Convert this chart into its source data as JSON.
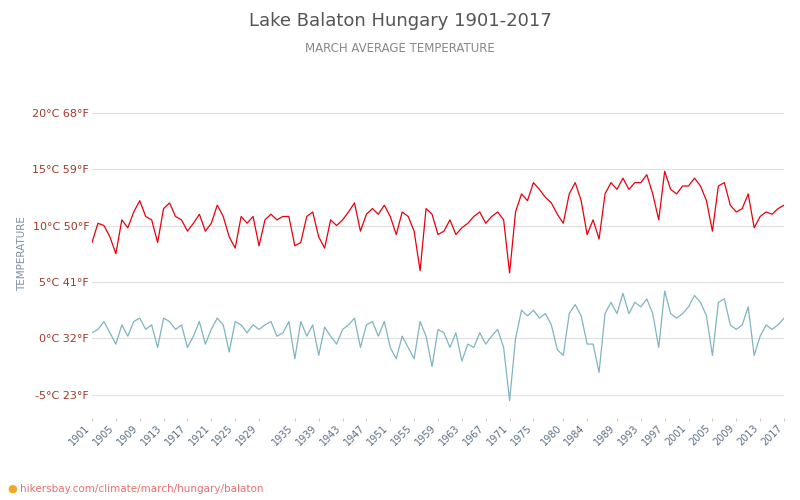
{
  "title": "Lake Balaton Hungary 1901-2017",
  "subtitle": "MARCH AVERAGE TEMPERATURE",
  "ylabel": "TEMPERATURE",
  "xlabel_url": "hikersbay.com/climate/march/hungary/balaton",
  "ylim": [
    -7,
    22
  ],
  "yticks_c": [
    -5,
    0,
    5,
    10,
    15,
    20
  ],
  "yticks_f": [
    23,
    32,
    41,
    50,
    59,
    68
  ],
  "years": [
    1901,
    1902,
    1903,
    1904,
    1905,
    1906,
    1907,
    1908,
    1909,
    1910,
    1911,
    1912,
    1913,
    1914,
    1915,
    1916,
    1917,
    1918,
    1919,
    1920,
    1921,
    1922,
    1923,
    1924,
    1925,
    1926,
    1927,
    1928,
    1929,
    1930,
    1931,
    1932,
    1933,
    1934,
    1935,
    1936,
    1937,
    1938,
    1939,
    1940,
    1941,
    1942,
    1943,
    1944,
    1945,
    1946,
    1947,
    1948,
    1949,
    1950,
    1951,
    1952,
    1953,
    1954,
    1955,
    1956,
    1957,
    1958,
    1959,
    1960,
    1961,
    1962,
    1963,
    1964,
    1965,
    1966,
    1967,
    1968,
    1969,
    1970,
    1971,
    1972,
    1973,
    1974,
    1975,
    1976,
    1977,
    1978,
    1979,
    1980,
    1981,
    1982,
    1983,
    1984,
    1985,
    1986,
    1987,
    1988,
    1989,
    1990,
    1991,
    1992,
    1993,
    1994,
    1995,
    1996,
    1997,
    1998,
    1999,
    2000,
    2001,
    2002,
    2003,
    2004,
    2005,
    2006,
    2007,
    2008,
    2009,
    2010,
    2011,
    2012,
    2013,
    2014,
    2015,
    2016,
    2017
  ],
  "day_temps": [
    8.5,
    10.2,
    10.0,
    9.0,
    7.5,
    10.5,
    9.8,
    11.2,
    12.2,
    10.8,
    10.5,
    8.5,
    11.5,
    12.0,
    10.8,
    10.5,
    9.5,
    10.2,
    11.0,
    9.5,
    10.2,
    11.8,
    10.8,
    9.0,
    8.0,
    10.8,
    10.2,
    10.8,
    8.2,
    10.5,
    11.0,
    10.5,
    10.8,
    10.8,
    8.2,
    8.5,
    10.8,
    11.2,
    9.0,
    8.0,
    10.5,
    10.0,
    10.5,
    11.2,
    12.0,
    9.5,
    11.0,
    11.5,
    11.0,
    11.8,
    10.8,
    9.2,
    11.2,
    10.8,
    9.5,
    6.0,
    11.5,
    11.0,
    9.2,
    9.5,
    10.5,
    9.2,
    9.8,
    10.2,
    10.8,
    11.2,
    10.2,
    10.8,
    11.2,
    10.5,
    5.8,
    11.2,
    12.8,
    12.2,
    13.8,
    13.2,
    12.5,
    12.0,
    11.0,
    10.2,
    12.8,
    13.8,
    12.2,
    9.2,
    10.5,
    8.8,
    12.8,
    13.8,
    13.2,
    14.2,
    13.2,
    13.8,
    13.8,
    14.5,
    12.8,
    10.5,
    14.8,
    13.2,
    12.8,
    13.5,
    13.5,
    14.2,
    13.5,
    12.2,
    9.5,
    13.5,
    13.8,
    11.8,
    11.2,
    11.5,
    12.8,
    9.8,
    10.8,
    11.2,
    11.0,
    11.5,
    11.8
  ],
  "night_temps": [
    0.5,
    0.8,
    1.5,
    0.5,
    -0.5,
    1.2,
    0.2,
    1.5,
    1.8,
    0.8,
    1.2,
    -0.8,
    1.8,
    1.5,
    0.8,
    1.2,
    -0.8,
    0.2,
    1.5,
    -0.5,
    0.8,
    1.8,
    1.2,
    -1.2,
    1.5,
    1.2,
    0.5,
    1.2,
    0.8,
    1.2,
    1.5,
    0.2,
    0.5,
    1.5,
    -1.8,
    1.5,
    0.2,
    1.2,
    -1.5,
    1.0,
    0.2,
    -0.5,
    0.8,
    1.2,
    1.8,
    -0.8,
    1.2,
    1.5,
    0.2,
    1.5,
    -0.8,
    -1.8,
    0.2,
    -0.8,
    -1.8,
    1.5,
    0.2,
    -2.5,
    0.8,
    0.5,
    -0.8,
    0.5,
    -2.0,
    -0.5,
    -0.8,
    0.5,
    -0.5,
    0.2,
    0.8,
    -0.8,
    -5.5,
    0.0,
    2.5,
    2.0,
    2.5,
    1.8,
    2.2,
    1.2,
    -1.0,
    -1.5,
    2.2,
    3.0,
    2.0,
    -0.5,
    -0.5,
    -3.0,
    2.2,
    3.2,
    2.2,
    4.0,
    2.2,
    3.2,
    2.8,
    3.5,
    2.2,
    -0.8,
    4.2,
    2.2,
    1.8,
    2.2,
    2.8,
    3.8,
    3.2,
    2.0,
    -1.5,
    3.2,
    3.5,
    1.2,
    0.8,
    1.2,
    2.8,
    -1.5,
    0.2,
    1.2,
    0.8,
    1.2,
    1.8
  ],
  "day_color": "#e8000d",
  "night_color": "#7eb5c0",
  "title_color": "#555555",
  "subtitle_color": "#888888",
  "ylabel_color": "#7a8fa6",
  "tick_color": "#a0392a",
  "grid_color": "#e0e0e0",
  "url_color": "#e87070",
  "url_icon_color": "#f5a623",
  "background_color": "#ffffff",
  "xtick_years": [
    1901,
    1905,
    1909,
    1913,
    1917,
    1921,
    1925,
    1929,
    1935,
    1939,
    1943,
    1947,
    1951,
    1955,
    1959,
    1963,
    1967,
    1971,
    1975,
    1980,
    1984,
    1989,
    1993,
    1997,
    2001,
    2005,
    2009,
    2013,
    2017
  ]
}
